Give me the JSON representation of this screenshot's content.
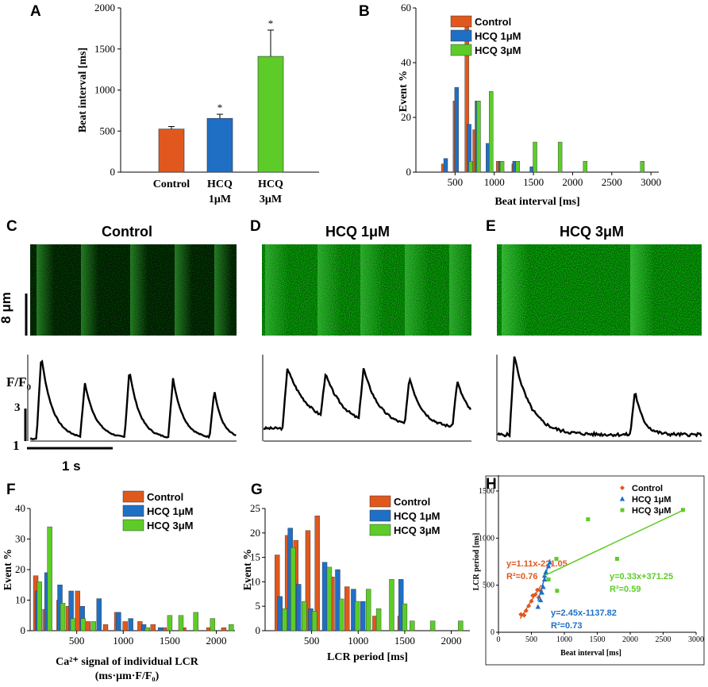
{
  "panels": {
    "A": "A",
    "B": "B",
    "C": "C",
    "D": "D",
    "E": "E",
    "F": "F",
    "G": "G",
    "H": "H"
  },
  "colors": {
    "control": "#E0581E",
    "hcq1": "#1F6FC5",
    "hcq3": "#5DCC28",
    "black": "#000000"
  },
  "images": {
    "C": {
      "title": "Control",
      "scale_label": "8 μm"
    },
    "D": {
      "title": "HCQ 1μM"
    },
    "E": {
      "title": "HCQ 3μM"
    },
    "trace": {
      "ylabel_main": "F/F",
      "ylabel_sub": "0",
      "scale_y": "3",
      "base_y": "1",
      "scale_x": "1 s"
    }
  },
  "chart_data": [
    {
      "id": "A",
      "type": "bar",
      "ylabel": "Beat interval [ms]",
      "ylim": [
        0,
        2000
      ],
      "yticks": [
        0,
        500,
        1000,
        1500,
        2000
      ],
      "categories": [
        "Control",
        "HCQ\n1μM",
        "HCQ\n3μM"
      ],
      "category_lines": [
        [
          "Control"
        ],
        [
          "HCQ",
          "1μM"
        ],
        [
          "HCQ",
          "3μM"
        ]
      ],
      "values": [
        525,
        655,
        1410
      ],
      "errors": [
        30,
        50,
        320
      ],
      "significance": [
        "",
        "*",
        "*"
      ]
    },
    {
      "id": "B",
      "type": "bar",
      "xlabel": "Beat interval [ms]",
      "ylabel": "Event %",
      "ylim": [
        0,
        60
      ],
      "yticks": [
        0,
        20,
        40,
        60
      ],
      "xlim": [
        0,
        3100
      ],
      "xticks": [
        500,
        1000,
        1500,
        2000,
        2500,
        3000
      ],
      "legend": [
        "Control",
        "HCQ 1μM",
        "HCQ 3μM"
      ],
      "series": [
        {
          "name": "Control",
          "points": [
            [
              350,
              3
            ],
            [
              500,
              26
            ],
            [
              650,
              56
            ],
            [
              750,
              15.5
            ],
            [
              1050,
              4
            ],
            [
              1250,
              3
            ]
          ]
        },
        {
          "name": "HCQ 1μM",
          "points": [
            [
              380,
              5
            ],
            [
              520,
              31
            ],
            [
              680,
              17.5
            ],
            [
              780,
              26
            ],
            [
              920,
              10.5
            ],
            [
              1080,
              4
            ],
            [
              1260,
              4
            ],
            [
              1480,
              2
            ]
          ]
        },
        {
          "name": "HCQ 3μM",
          "points": [
            [
              700,
              4
            ],
            [
              800,
              26
            ],
            [
              960,
              29.5
            ],
            [
              1100,
              4
            ],
            [
              1300,
              4
            ],
            [
              1520,
              11
            ],
            [
              1840,
              11
            ],
            [
              2160,
              4
            ],
            [
              2890,
              4
            ]
          ]
        }
      ]
    },
    {
      "id": "F",
      "type": "bar",
      "xlabel": "Ca²⁺ signal of individual LCR",
      "xlabel2": "(ms·μm·F/F₀)",
      "ylabel": "Event %",
      "ylim": [
        0,
        40
      ],
      "yticks": [
        0,
        10,
        20,
        30,
        40
      ],
      "xlim": [
        0,
        2200
      ],
      "xticks": [
        500,
        1000,
        1500,
        2000
      ],
      "legend": [
        "Control",
        "HCQ 1μM",
        "HCQ 3μM"
      ],
      "series": [
        {
          "name": "Control",
          "points": [
            [
              60,
              18
            ],
            [
              160,
              7
            ],
            [
              310,
              10
            ],
            [
              410,
              8
            ],
            [
              510,
              13
            ],
            [
              620,
              3
            ],
            [
              810,
              2
            ],
            [
              930,
              6
            ],
            [
              1020,
              3
            ],
            [
              1180,
              3
            ],
            [
              1320,
              2
            ],
            [
              1440,
              1
            ],
            [
              1650,
              1
            ],
            [
              1920,
              1
            ],
            [
              2080,
              1
            ]
          ]
        },
        {
          "name": "HCQ 1μM",
          "points": [
            [
              80,
              13
            ],
            [
              180,
              19
            ],
            [
              320,
              15
            ],
            [
              440,
              13
            ],
            [
              560,
              8
            ],
            [
              740,
              10.5
            ],
            [
              950,
              6
            ],
            [
              1080,
              4
            ],
            [
              1220,
              2
            ],
            [
              1400,
              1
            ]
          ]
        },
        {
          "name": "HCQ 3μM",
          "points": [
            [
              100,
              16
            ],
            [
              210,
              34
            ],
            [
              350,
              9
            ],
            [
              460,
              4
            ],
            [
              570,
              4
            ],
            [
              680,
              3
            ],
            [
              1260,
              1
            ],
            [
              1500,
              5
            ],
            [
              1620,
              5
            ],
            [
              1780,
              6
            ],
            [
              1960,
              4
            ],
            [
              2160,
              2
            ]
          ]
        }
      ]
    },
    {
      "id": "G",
      "type": "bar",
      "xlabel": "LCR period [ms]",
      "ylabel": "Event %",
      "ylim": [
        0,
        25
      ],
      "yticks": [
        0,
        5,
        10,
        15,
        20,
        25
      ],
      "xlim": [
        0,
        2200
      ],
      "xticks": [
        500,
        1000,
        1500,
        2000
      ],
      "legend": [
        "Control",
        "HCQ 1μM",
        "HCQ 3μM"
      ],
      "series": [
        {
          "name": "Control",
          "points": [
            [
              130,
              15.5
            ],
            [
              240,
              19.5
            ],
            [
              330,
              18.5
            ],
            [
              460,
              20.5
            ],
            [
              560,
              23.5
            ],
            [
              720,
              11
            ],
            [
              880,
              9
            ],
            [
              1180,
              3
            ],
            [
              1450,
              3
            ]
          ]
        },
        {
          "name": "HCQ 1μM",
          "points": [
            [
              160,
              7
            ],
            [
              270,
              21
            ],
            [
              360,
              9.5
            ],
            [
              490,
              4.5
            ],
            [
              640,
              14
            ],
            [
              780,
              12.5
            ],
            [
              950,
              8.5
            ],
            [
              1050,
              6
            ],
            [
              1460,
              10.5
            ]
          ]
        },
        {
          "name": "HCQ 3μM",
          "points": [
            [
              210,
              4.5
            ],
            [
              300,
              17
            ],
            [
              420,
              6
            ],
            [
              530,
              4
            ],
            [
              690,
              13
            ],
            [
              820,
              6.5
            ],
            [
              990,
              6
            ],
            [
              1110,
              8.5
            ],
            [
              1220,
              4.5
            ],
            [
              1360,
              10.5
            ],
            [
              1500,
              5.5
            ],
            [
              1580,
              2
            ],
            [
              1800,
              2
            ],
            [
              2100,
              2
            ]
          ]
        }
      ]
    },
    {
      "id": "H",
      "type": "scatter",
      "xlabel": "Beat interval [ms]",
      "ylabel": "LCR period [ms]",
      "xlim": [
        0,
        3000
      ],
      "ylim": [
        0,
        1500
      ],
      "xticks": [
        0,
        500,
        1000,
        1500,
        2000,
        2500,
        3000
      ],
      "yticks": [
        0,
        500,
        1000,
        1500
      ],
      "legend": [
        "Control",
        "HCQ 1μM",
        "HCQ 3μM"
      ],
      "series": [
        {
          "name": "Control",
          "points": [
            [
              340,
              190
            ],
            [
              390,
              180
            ],
            [
              420,
              230
            ],
            [
              460,
              280
            ],
            [
              500,
              330
            ],
            [
              520,
              390
            ],
            [
              560,
              400
            ],
            [
              590,
              450
            ],
            [
              610,
              370
            ],
            [
              640,
              440
            ]
          ],
          "fit": {
            "x": [
              330,
              650
            ],
            "slope": 1.11,
            "intercept": -221.05
          },
          "equation": "y=1.11x-221.05",
          "r2": "R²=0.76"
        },
        {
          "name": "HCQ 1μM",
          "points": [
            [
              600,
              270
            ],
            [
              640,
              340
            ],
            [
              680,
              480
            ],
            [
              700,
              560
            ],
            [
              720,
              640
            ],
            [
              760,
              700
            ],
            [
              780,
              740
            ],
            [
              660,
              420
            ],
            [
              700,
              600
            ]
          ],
          "fit": {
            "x": [
              600,
              780
            ],
            "slope": 2.45,
            "intercept": -1137.82
          },
          "equation": "y=2.45x-1137.82",
          "r2": "R²=0.73"
        },
        {
          "name": "HCQ 3μM",
          "points": [
            [
              760,
              560
            ],
            [
              880,
              780
            ],
            [
              890,
              440
            ],
            [
              1360,
              1200
            ],
            [
              1800,
              780
            ],
            [
              2800,
              1300
            ]
          ],
          "fit": {
            "x": [
              700,
              2800
            ],
            "slope": 0.33,
            "intercept": 371.25
          },
          "equation": "y=0.33x+371.25",
          "r2": "R²=0.59"
        }
      ]
    }
  ]
}
